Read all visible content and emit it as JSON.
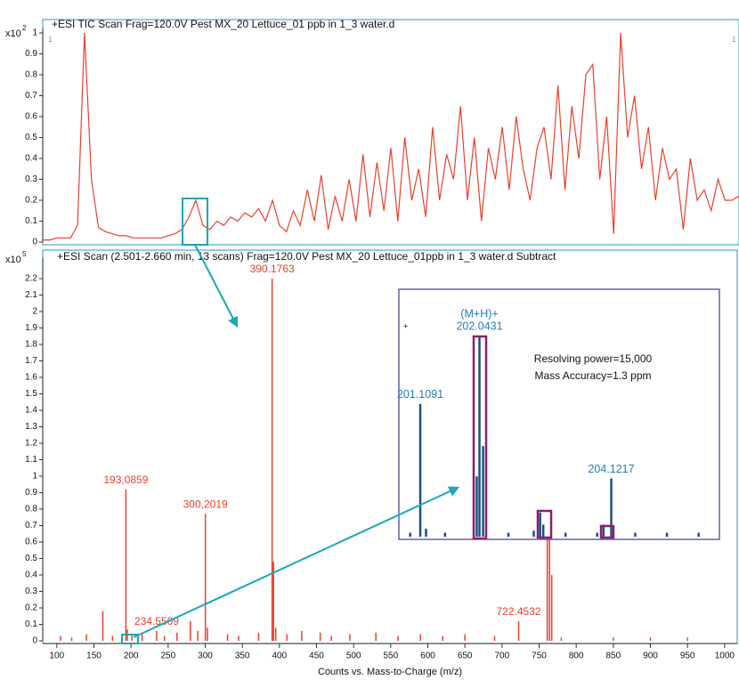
{
  "chart_data": [
    {
      "type": "line",
      "title": "+ESI TIC Scan Frag=120.0V Pest MX_20 Lettuce_01 ppb in 1_3 water.d",
      "y_multiplier": {
        "base": "x10",
        "exponent": "2"
      },
      "corner_labels": [
        "1",
        "1"
      ],
      "color": "#e8402c",
      "values": [
        0.01,
        0.01,
        0.02,
        0.02,
        0.02,
        0.08,
        1.0,
        0.3,
        0.07,
        0.05,
        0.04,
        0.03,
        0.03,
        0.02,
        0.02,
        0.02,
        0.02,
        0.02,
        0.03,
        0.04,
        0.06,
        0.12,
        0.2,
        0.08,
        0.06,
        0.1,
        0.08,
        0.12,
        0.1,
        0.14,
        0.12,
        0.16,
        0.1,
        0.2,
        0.08,
        0.05,
        0.15,
        0.08,
        0.25,
        0.1,
        0.32,
        0.06,
        0.22,
        0.1,
        0.3,
        0.1,
        0.42,
        0.12,
        0.38,
        0.15,
        0.45,
        0.1,
        0.5,
        0.2,
        0.35,
        0.12,
        0.55,
        0.2,
        0.42,
        0.3,
        0.65,
        0.2,
        0.5,
        0.1,
        0.45,
        0.3,
        0.55,
        0.25,
        0.6,
        0.35,
        0.2,
        0.45,
        0.55,
        0.3,
        0.75,
        0.25,
        0.65,
        0.4,
        0.8,
        0.85,
        0.3,
        0.6,
        0.04,
        1.0,
        0.5,
        0.7,
        0.35,
        0.55,
        0.2,
        0.45,
        0.3,
        0.35,
        0.06,
        0.4,
        0.2,
        0.25,
        0.15,
        0.3,
        0.2,
        0.2,
        0.22
      ],
      "ylim": [
        0,
        1
      ],
      "yticks": [
        0,
        0.1,
        0.2,
        0.3,
        0.4,
        0.5,
        0.6,
        0.7,
        0.8,
        0.9,
        1
      ]
    },
    {
      "type": "bar",
      "title": "+ESI Scan (2.501-2.660 min, 13 scans) Frag=120.0V Pest MX_20 Lettuce_01ppb in 1_3 water.d Subtract",
      "y_multiplier": {
        "base": "x10",
        "exponent": "5"
      },
      "x_label": "Counts vs. Mass-to-Charge (m/z)",
      "color": "#e8402c",
      "x": [
        105,
        120,
        140,
        162,
        175,
        193.0859,
        195,
        201.1091,
        215,
        234.5509,
        245,
        262,
        280,
        290,
        300.2019,
        303,
        330,
        345,
        372,
        390.1763,
        392,
        395,
        410,
        430,
        455,
        470,
        495,
        530,
        560,
        590,
        620,
        650,
        690,
        722.4532,
        761,
        764,
        767,
        780,
        850,
        900,
        950
      ],
      "values": [
        0.03,
        0.02,
        0.04,
        0.18,
        0.03,
        0.92,
        0.07,
        0.04,
        0.05,
        0.06,
        0.03,
        0.05,
        0.12,
        0.06,
        0.77,
        0.08,
        0.04,
        0.03,
        0.05,
        2.2,
        0.48,
        0.08,
        0.04,
        0.06,
        0.05,
        0.03,
        0.04,
        0.05,
        0.03,
        0.04,
        0.03,
        0.04,
        0.03,
        0.12,
        0.78,
        0.78,
        0.4,
        0.02,
        0.02,
        0.02,
        0.02
      ],
      "annotations": [
        {
          "text": "193,0859",
          "x": 193.0859
        },
        {
          "text": "234.5509",
          "x": 234.5509
        },
        {
          "text": "300,2019",
          "x": 300.2019
        },
        {
          "text": "390.1763",
          "x": 390.1763
        },
        {
          "text": "722.4532",
          "x": 722.4532
        }
      ],
      "xlim": [
        81,
        1017
      ],
      "xticks": [
        100,
        150,
        200,
        250,
        300,
        350,
        400,
        450,
        500,
        550,
        600,
        650,
        700,
        750,
        800,
        850,
        900,
        950,
        1000
      ],
      "ylim": [
        0,
        2.3
      ],
      "yticks": [
        0,
        0.1,
        0.2,
        0.3,
        0.4,
        0.5,
        0.6,
        0.7,
        0.8,
        0.9,
        1,
        1.1,
        1.2,
        1.3,
        1.4,
        1.5,
        1.6,
        1.7,
        1.8,
        1.9,
        2,
        2.1,
        2.2
      ]
    },
    {
      "type": "bar",
      "marker": "+",
      "color": "#1f4f80",
      "x": [
        200.95,
        201.1091,
        201.2,
        201.5,
        202.0,
        202.0431,
        202.1,
        202.5,
        202.9,
        203.0,
        203.05,
        203.4,
        203.9,
        204.0,
        204.1217,
        204.5,
        205.0,
        205.5
      ],
      "values": [
        0.02,
        0.66,
        0.04,
        0.02,
        0.3,
        1.0,
        0.45,
        0.02,
        0.03,
        0.12,
        0.06,
        0.02,
        0.02,
        0.06,
        0.29,
        0.02,
        0.02,
        0.02
      ],
      "annotations": [
        {
          "text": "201.1091",
          "x": 201.1091
        },
        {
          "text": "202.0431",
          "x": 202.0431,
          "header": "(M+H)+"
        },
        {
          "text": "204.1217",
          "x": 204.1217
        }
      ],
      "notes": [
        "Resolving power=15,000",
        "Mass Accuracy=1.3 ppm"
      ],
      "xlim": [
        200.8,
        205.8
      ],
      "ylim": [
        0,
        1.23
      ]
    }
  ]
}
